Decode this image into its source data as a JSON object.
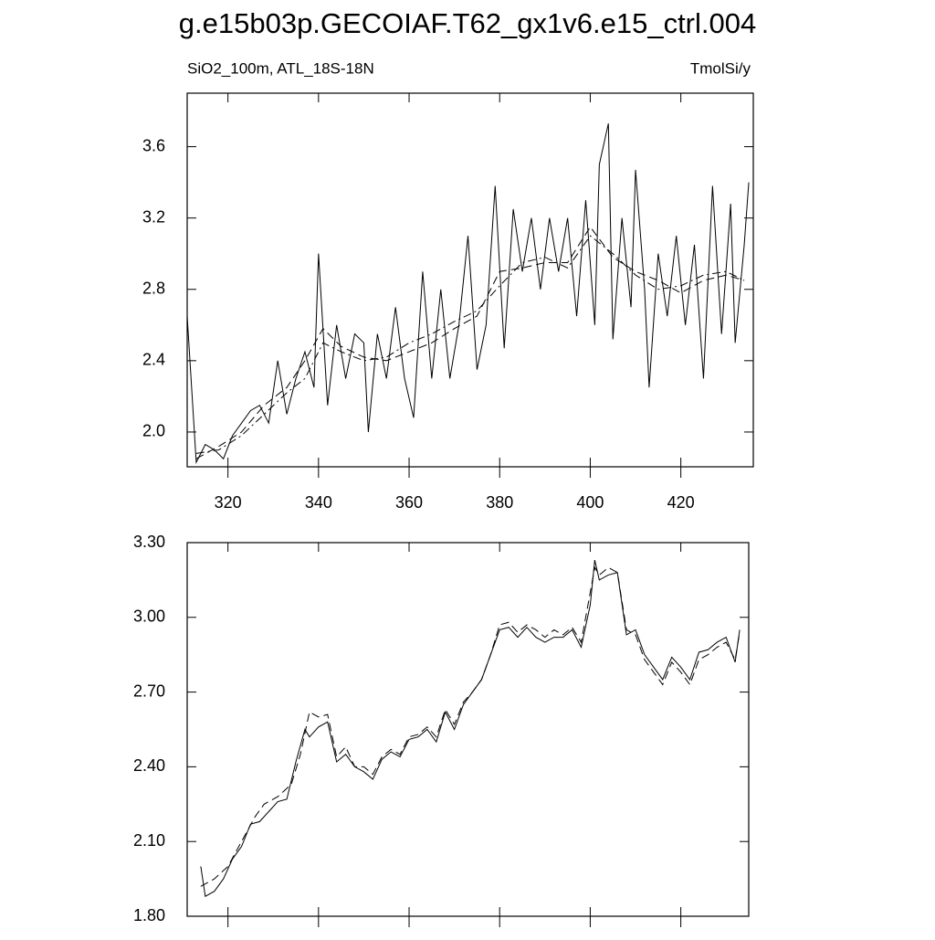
{
  "chart_data": [
    {
      "type": "line",
      "title": "g.e15b03p.GECOIAF.T62_gx1v6.e15_ctrl.004",
      "subtitle": "SiO2_100m, ATL_18S-18N",
      "unit_label": "TmolSi/y",
      "xlim": [
        311,
        436
      ],
      "xticks": [
        320,
        340,
        360,
        380,
        400,
        420
      ],
      "ylim": [
        1.805,
        3.9
      ],
      "yticks": [
        {
          "value": 2,
          "label": "2.0"
        },
        2.4,
        2.8,
        3.2,
        3.6
      ],
      "series": [
        {
          "color": "#000000",
          "dash": "solid",
          "x": [
            311,
            313,
            315,
            317,
            319,
            321,
            323,
            325,
            327,
            329,
            331,
            333,
            335,
            337,
            339,
            340,
            342,
            344,
            346,
            348,
            350,
            351,
            353,
            355,
            357,
            359,
            361,
            363,
            365,
            367,
            369,
            371,
            373,
            375,
            377,
            379,
            381,
            383,
            385,
            387,
            389,
            391,
            393,
            395,
            397,
            399,
            401,
            402,
            404,
            405,
            407,
            409,
            410,
            412,
            413,
            415,
            417,
            419,
            421,
            423,
            425,
            427,
            429,
            431,
            432,
            434,
            435
          ],
          "values": [
            2.65,
            1.83,
            1.93,
            1.9,
            1.85,
            1.98,
            2.05,
            2.12,
            2.15,
            2.05,
            2.4,
            2.1,
            2.3,
            2.45,
            2.25,
            3.0,
            2.15,
            2.6,
            2.3,
            2.55,
            2.5,
            2.0,
            2.55,
            2.3,
            2.7,
            2.3,
            2.08,
            2.9,
            2.3,
            2.8,
            2.3,
            2.6,
            3.1,
            2.35,
            2.6,
            3.38,
            2.47,
            3.25,
            2.9,
            3.2,
            2.8,
            3.2,
            2.9,
            3.2,
            2.65,
            3.3,
            2.6,
            3.5,
            3.73,
            2.52,
            3.2,
            2.7,
            3.47,
            2.8,
            2.25,
            3.0,
            2.65,
            3.1,
            2.6,
            3.05,
            2.3,
            3.38,
            2.55,
            3.28,
            2.5,
            3.05,
            3.4
          ]
        },
        {
          "color": "#000000",
          "dash": "dashed",
          "x": [
            313,
            318,
            323,
            328,
            333,
            337,
            341,
            345,
            350,
            355,
            360,
            365,
            370,
            375,
            380,
            385,
            390,
            395,
            400,
            405,
            410,
            415,
            420,
            425,
            430,
            434
          ],
          "values": [
            1.85,
            1.92,
            2.0,
            2.15,
            2.25,
            2.4,
            2.58,
            2.48,
            2.42,
            2.4,
            2.45,
            2.5,
            2.58,
            2.65,
            2.9,
            2.92,
            2.95,
            2.95,
            3.15,
            2.98,
            2.9,
            2.85,
            2.78,
            2.85,
            2.88,
            2.85
          ]
        },
        {
          "color": "#000000",
          "dash": "dashdot",
          "x": [
            313,
            318,
            323,
            328,
            333,
            337,
            341,
            345,
            350,
            355,
            360,
            365,
            370,
            375,
            380,
            385,
            390,
            395,
            400,
            405,
            410,
            415,
            420,
            425,
            430,
            434
          ],
          "values": [
            1.88,
            1.9,
            1.98,
            2.1,
            2.22,
            2.3,
            2.5,
            2.45,
            2.4,
            2.42,
            2.5,
            2.55,
            2.62,
            2.68,
            2.82,
            2.95,
            2.98,
            2.92,
            3.1,
            3.0,
            2.88,
            2.8,
            2.82,
            2.88,
            2.9,
            2.85
          ]
        }
      ]
    },
    {
      "type": "line",
      "xlim": [
        311,
        435
      ],
      "xticks": [
        320,
        340,
        360,
        380,
        400,
        420
      ],
      "ylim": [
        1.8,
        3.3
      ],
      "yticks": [
        {
          "value": 1.8,
          "label": "1.80"
        },
        {
          "value": 2.1,
          "label": "2.10"
        },
        {
          "value": 2.4,
          "label": "2.40"
        },
        {
          "value": 2.7,
          "label": "2.70"
        },
        {
          "value": 3,
          "label": "3.00"
        },
        {
          "value": 3.3,
          "label": "3.30"
        }
      ],
      "series": [
        {
          "color": "#000000",
          "dash": "solid",
          "x": [
            314,
            315,
            317,
            319,
            321,
            323,
            325,
            327,
            329,
            331,
            333,
            335,
            337,
            338,
            340,
            342,
            344,
            346,
            348,
            350,
            352,
            354,
            356,
            358,
            360,
            362,
            364,
            366,
            368,
            370,
            372,
            374,
            376,
            378,
            380,
            382,
            384,
            386,
            388,
            390,
            392,
            394,
            396,
            398,
            400,
            401,
            402,
            404,
            406,
            408,
            410,
            412,
            414,
            416,
            418,
            420,
            422,
            424,
            426,
            428,
            430,
            432,
            433
          ],
          "values": [
            2.0,
            1.88,
            1.9,
            1.95,
            2.03,
            2.08,
            2.17,
            2.18,
            2.22,
            2.26,
            2.27,
            2.42,
            2.55,
            2.52,
            2.56,
            2.58,
            2.42,
            2.45,
            2.4,
            2.38,
            2.35,
            2.43,
            2.46,
            2.44,
            2.51,
            2.52,
            2.55,
            2.5,
            2.62,
            2.55,
            2.65,
            2.7,
            2.75,
            2.85,
            2.95,
            2.96,
            2.92,
            2.96,
            2.92,
            2.9,
            2.92,
            2.92,
            2.95,
            2.88,
            3.05,
            3.23,
            3.15,
            3.17,
            3.18,
            2.93,
            2.95,
            2.85,
            2.8,
            2.75,
            2.84,
            2.8,
            2.75,
            2.86,
            2.87,
            2.9,
            2.92,
            2.82,
            2.95
          ]
        },
        {
          "color": "#000000",
          "dash": "dashed",
          "x": [
            314,
            317,
            320,
            323,
            326,
            328,
            331,
            334,
            336,
            338,
            340,
            342,
            344,
            346,
            348,
            350,
            352,
            354,
            356,
            358,
            360,
            362,
            364,
            366,
            368,
            370,
            372,
            374,
            376,
            378,
            380,
            382,
            384,
            386,
            388,
            390,
            392,
            394,
            396,
            398,
            400,
            401,
            402,
            404,
            406,
            408,
            410,
            412,
            414,
            416,
            418,
            420,
            422,
            424,
            426,
            428,
            430,
            432,
            433
          ],
          "values": [
            1.92,
            1.95,
            2.0,
            2.1,
            2.2,
            2.25,
            2.28,
            2.33,
            2.45,
            2.62,
            2.6,
            2.61,
            2.44,
            2.48,
            2.4,
            2.4,
            2.37,
            2.44,
            2.47,
            2.45,
            2.52,
            2.53,
            2.56,
            2.52,
            2.63,
            2.57,
            2.66,
            2.7,
            2.75,
            2.85,
            2.97,
            2.98,
            2.94,
            2.97,
            2.95,
            2.92,
            2.95,
            2.93,
            2.96,
            2.9,
            3.1,
            3.2,
            3.17,
            3.2,
            3.18,
            2.95,
            2.93,
            2.83,
            2.78,
            2.73,
            2.82,
            2.78,
            2.73,
            2.83,
            2.85,
            2.88,
            2.9,
            2.83,
            2.94
          ]
        }
      ]
    }
  ]
}
